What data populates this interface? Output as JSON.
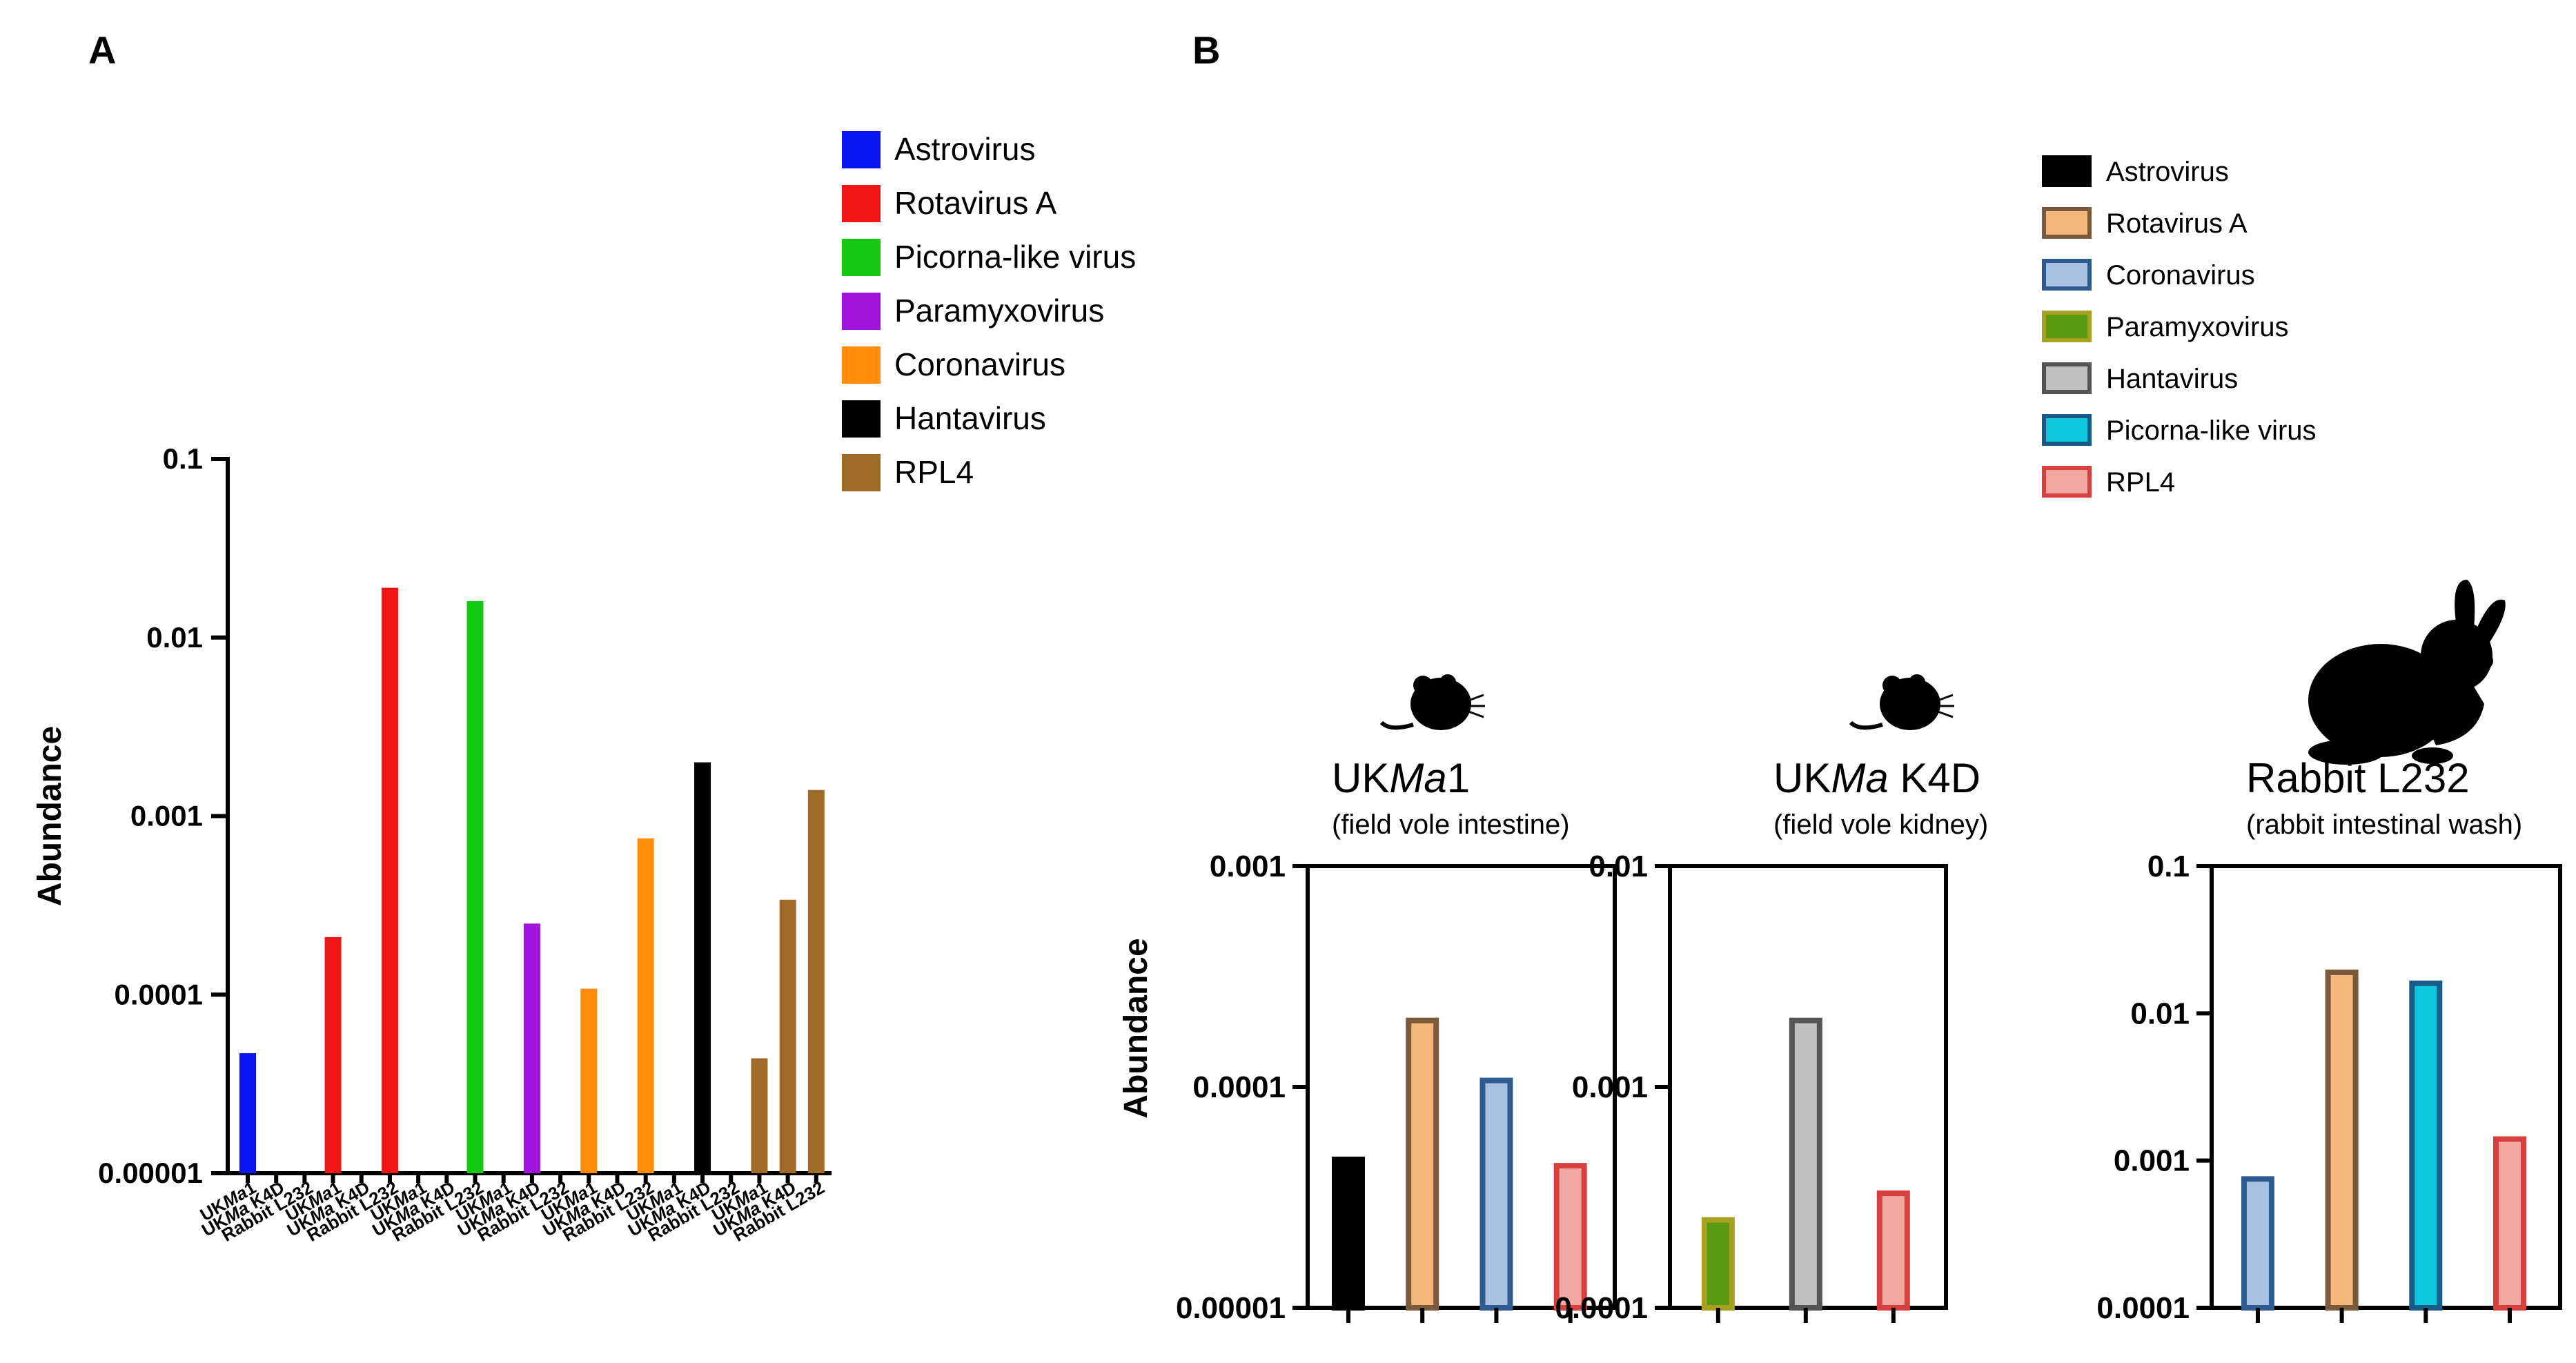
{
  "panel_labels": {
    "a": "A",
    "b": "B"
  },
  "chart_data": [
    {
      "id": "panel-a",
      "type": "bar",
      "yscale": "log",
      "ylabel": "Abundance",
      "ylim": [
        1e-05,
        0.1
      ],
      "yticks": [
        "0.00001",
        "0.0001",
        "0.001",
        "0.01",
        "0.1"
      ],
      "legend_position": "top-right",
      "series": [
        {
          "name": "Astrovirus",
          "color": "#0a14f0",
          "categories": [
            "UKMa1",
            "UKMa K4D",
            "Rabbit L232"
          ],
          "values": [
            4.7e-05,
            null,
            null
          ]
        },
        {
          "name": "Rotavirus A",
          "color": "#f01414",
          "categories": [
            "UKMa1",
            "UKMa K4D",
            "Rabbit L232"
          ],
          "values": [
            0.00021,
            null,
            0.019
          ]
        },
        {
          "name": "Picorna-like virus",
          "color": "#14c814",
          "categories": [
            "UKMa1",
            "UKMa K4D",
            "Rabbit L232"
          ],
          "values": [
            null,
            null,
            0.016
          ]
        },
        {
          "name": "Paramyxovirus",
          "color": "#a014dc",
          "categories": [
            "UKMa1",
            "UKMa K4D",
            "Rabbit L232"
          ],
          "values": [
            null,
            0.00025,
            null
          ]
        },
        {
          "name": "Coronavirus",
          "color": "#ff8c0a",
          "categories": [
            "UKMa1",
            "UKMa K4D",
            "Rabbit L232"
          ],
          "values": [
            0.000108,
            null,
            0.00075
          ]
        },
        {
          "name": "Hantavirus",
          "color": "#000000",
          "categories": [
            "UKMa1",
            "UKMa K4D",
            "Rabbit L232"
          ],
          "values": [
            null,
            0.002,
            null
          ]
        },
        {
          "name": "RPL4",
          "color": "#a06a28",
          "categories": [
            "UKMa1",
            "UKMa K4D",
            "Rabbit L232"
          ],
          "values": [
            4.4e-05,
            0.00034,
            0.0014
          ]
        }
      ]
    },
    {
      "id": "panel-b",
      "type": "bar",
      "yscale": "log",
      "ylabel": "Abundance",
      "legend_position": "top-right",
      "legend": [
        {
          "name": "Astrovirus",
          "fill": "#000000",
          "stroke": "#000000"
        },
        {
          "name": "Rotavirus A",
          "fill": "#f3b77b",
          "stroke": "#7a5a3a"
        },
        {
          "name": "Coronavirus",
          "fill": "#a9c2e2",
          "stroke": "#2f5b93"
        },
        {
          "name": "Paramyxovirus",
          "fill": "#5a9a10",
          "stroke": "#a8a020"
        },
        {
          "name": "Hantavirus",
          "fill": "#c0c0c0",
          "stroke": "#555555"
        },
        {
          "name": "Picorna-like virus",
          "fill": "#10c8dc",
          "stroke": "#1a5a8a"
        },
        {
          "name": "RPL4",
          "fill": "#f0a8a0",
          "stroke": "#d84040"
        }
      ],
      "subplots": [
        {
          "title_prefix": "UK",
          "title_italic": "Ma",
          "title_suffix": "1",
          "subtitle": "(field vole intestine)",
          "ylim": [
            1e-05,
            0.001
          ],
          "yticks": [
            "0.00001",
            "0.0001",
            "0.001"
          ],
          "bars": [
            {
              "series": "Astrovirus",
              "value": 4.7e-05
            },
            {
              "series": "Rotavirus A",
              "value": 0.0002
            },
            {
              "series": "Coronavirus",
              "value": 0.000107
            },
            {
              "series": "RPL4",
              "value": 4.4e-05
            }
          ]
        },
        {
          "title_prefix": "UK",
          "title_italic": "Ma",
          "title_suffix": " K4D",
          "subtitle": "(field vole kidney)",
          "ylim": [
            0.0001,
            0.01
          ],
          "yticks": [
            "0.0001",
            "0.001",
            "0.01"
          ],
          "bars": [
            {
              "series": "Paramyxovirus",
              "value": 0.00025
            },
            {
              "series": "Hantavirus",
              "value": 0.002
            },
            {
              "series": "RPL4",
              "value": 0.00033
            }
          ]
        },
        {
          "title_prefix": "Rabbit L232",
          "title_italic": "",
          "title_suffix": "",
          "subtitle": "(rabbit intestinal wash)",
          "ylim": [
            0.0001,
            0.1
          ],
          "yticks": [
            "0.0001",
            "0.001",
            "0.01",
            "0.1"
          ],
          "bars": [
            {
              "series": "Coronavirus",
              "value": 0.00075
            },
            {
              "series": "Rotavirus A",
              "value": 0.019
            },
            {
              "series": "Picorna-like virus",
              "value": 0.016
            },
            {
              "series": "RPL4",
              "value": 0.0014
            }
          ]
        }
      ]
    }
  ]
}
